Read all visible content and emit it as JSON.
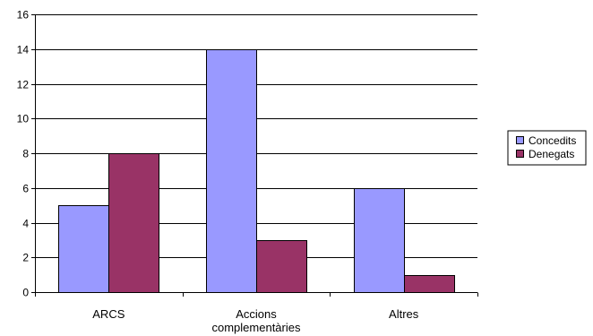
{
  "chart_data": {
    "type": "bar",
    "categories": [
      "ARCS",
      "Accions complementàries",
      "Altres"
    ],
    "category_lines": [
      [
        "ARCS"
      ],
      [
        "Accions",
        "complementàries"
      ],
      [
        "Altres"
      ]
    ],
    "series": [
      {
        "name": "Concedits",
        "values": [
          5,
          14,
          6
        ],
        "color": "#9999ff"
      },
      {
        "name": "Denegats",
        "values": [
          8,
          3,
          1
        ],
        "color": "#993366"
      }
    ],
    "ylim": [
      0,
      16
    ],
    "yticks": [
      0,
      2,
      4,
      6,
      8,
      10,
      12,
      14,
      16
    ],
    "grid": true,
    "legend": "right",
    "title": "",
    "xlabel": "",
    "ylabel": ""
  }
}
